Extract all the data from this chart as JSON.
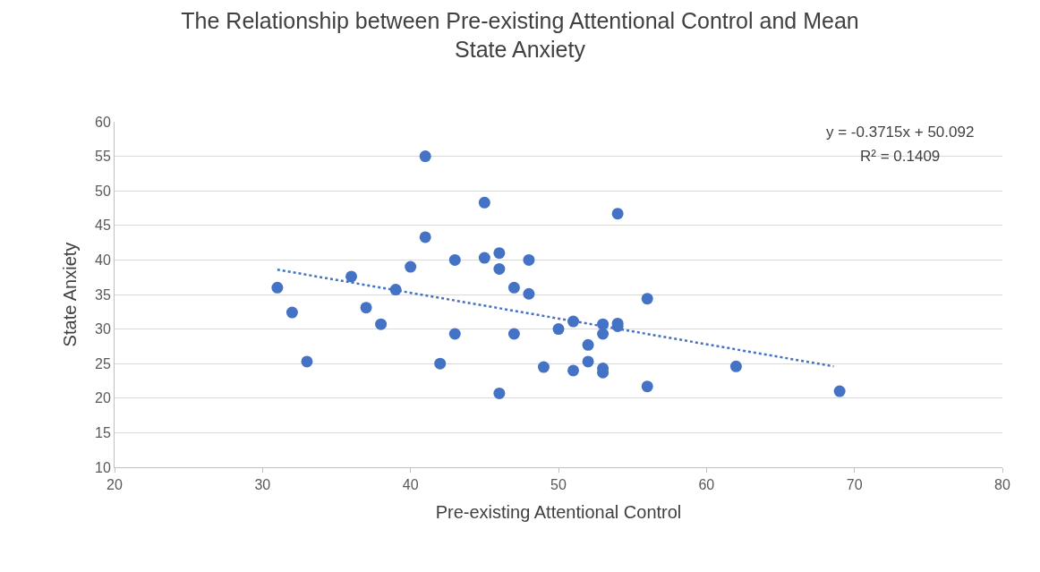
{
  "chart_data": {
    "type": "scatter",
    "title": "The Relationship between Pre-existing Attentional Control and Mean State Anxiety",
    "xlabel": "Pre-existing Attentional Control",
    "ylabel": "State Anxiety",
    "xlim": [
      20,
      80
    ],
    "xticks": [
      20,
      30,
      40,
      50,
      60,
      70,
      80
    ],
    "ylim": [
      10,
      60
    ],
    "yticks": [
      10,
      15,
      20,
      25,
      30,
      35,
      40,
      45,
      50,
      55,
      60
    ],
    "grid": "y",
    "legend": false,
    "marker": "circle",
    "series": [
      {
        "color": "#4472c4",
        "x": [
          31,
          32,
          33,
          36,
          37,
          38,
          39,
          40,
          41,
          41,
          42,
          43,
          43,
          45,
          45,
          46,
          46,
          46,
          47,
          47,
          48,
          48,
          49,
          50,
          51,
          51,
          52,
          52,
          53,
          53,
          53,
          53,
          54,
          54,
          54,
          56,
          56,
          62,
          69
        ],
        "values": [
          36,
          32.4,
          25.3,
          37.6,
          33.1,
          30.7,
          35.7,
          39,
          55,
          43.3,
          25,
          40,
          29.3,
          48.3,
          40.3,
          41,
          38.7,
          20.7,
          36,
          29.3,
          40,
          35.1,
          24.5,
          30,
          31.1,
          24,
          27.7,
          25.3,
          30.7,
          29.3,
          24.3,
          23.7,
          46.7,
          30.8,
          30.4,
          34.4,
          21.7,
          24.6,
          21
        ]
      },
      {
        "type": "line",
        "color": "#4472c4",
        "line_style": "dotted",
        "marker": "none",
        "x": [
          31,
          68.6
        ],
        "values": [
          38.6,
          24.6
        ]
      }
    ],
    "annotations": [
      "y = -0.3715x + 50.092",
      "R² = 0.1409"
    ]
  }
}
